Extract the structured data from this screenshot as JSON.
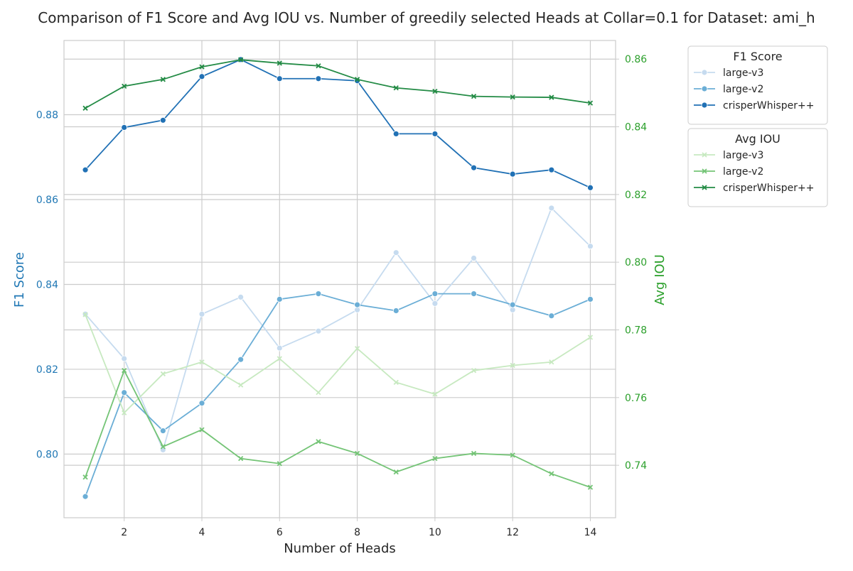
{
  "chart_data": {
    "type": "line",
    "title": "Comparison of F1 Score and Avg IOU vs. Number of greedily selected Heads at Collar=0.1 for Dataset: ami_h",
    "xlabel": "Number of Heads",
    "ylabel_left": "F1 Score",
    "ylabel_right": "Avg IOU",
    "x": [
      1,
      2,
      3,
      4,
      5,
      6,
      7,
      8,
      9,
      10,
      11,
      12,
      13,
      14
    ],
    "xlim": [
      0.45,
      14.65
    ],
    "xticks": [
      2,
      4,
      6,
      8,
      10,
      12,
      14
    ],
    "ylim_left": [
      0.785,
      0.8975
    ],
    "yticks_left": [
      0.8,
      0.82,
      0.84,
      0.86,
      0.88
    ],
    "ylim_right": [
      0.7245,
      0.8655
    ],
    "yticks_right": [
      0.74,
      0.76,
      0.78,
      0.8,
      0.82,
      0.84,
      0.86
    ],
    "grid": true,
    "left_axis_color": "#1f77b4",
    "right_axis_color": "#2ca02c",
    "legends": [
      {
        "title": "F1 Score",
        "placement": "upper-right-outside",
        "marker": "circle",
        "axis": "left",
        "series": [
          {
            "name": "large-v3",
            "color": "#c6dbef",
            "values": [
              0.833,
              0.8225,
              0.801,
              0.833,
              0.837,
              0.825,
              0.829,
              0.834,
              0.8475,
              0.8355,
              0.8462,
              0.834,
              0.858,
              0.849
            ]
          },
          {
            "name": "large-v2",
            "color": "#6baed6",
            "values": [
              0.79,
              0.8145,
              0.8055,
              0.812,
              0.8223,
              0.8365,
              0.8378,
              0.8352,
              0.8338,
              0.8378,
              0.8378,
              0.8352,
              0.8326,
              0.8365
            ]
          },
          {
            "name": "crisperWhisper++",
            "color": "#2171b5",
            "values": [
              0.867,
              0.877,
              0.8787,
              0.889,
              0.893,
              0.8885,
              0.8885,
              0.888,
              0.8755,
              0.8755,
              0.8675,
              0.866,
              0.867,
              0.8628
            ]
          }
        ]
      },
      {
        "title": "Avg IOU",
        "placement": "upper-right-outside",
        "marker": "x",
        "axis": "right",
        "series": [
          {
            "name": "large-v3",
            "color": "#c7e9c0",
            "values": [
              0.7845,
              0.7555,
              0.767,
              0.7705,
              0.7637,
              0.7715,
              0.7615,
              0.7745,
              0.7645,
              0.761,
              0.768,
              0.7695,
              0.7705,
              0.7778
            ]
          },
          {
            "name": "large-v2",
            "color": "#74c476",
            "values": [
              0.7365,
              0.768,
              0.7455,
              0.7505,
              0.742,
              0.7405,
              0.747,
              0.7435,
              0.738,
              0.742,
              0.7435,
              0.743,
              0.7375,
              0.7335
            ]
          },
          {
            "name": "crisperWhisper++",
            "color": "#238b45",
            "values": [
              0.8455,
              0.852,
              0.854,
              0.8577,
              0.8598,
              0.8588,
              0.858,
              0.854,
              0.8515,
              0.8505,
              0.849,
              0.8488,
              0.8487,
              0.847
            ]
          }
        ]
      }
    ]
  }
}
